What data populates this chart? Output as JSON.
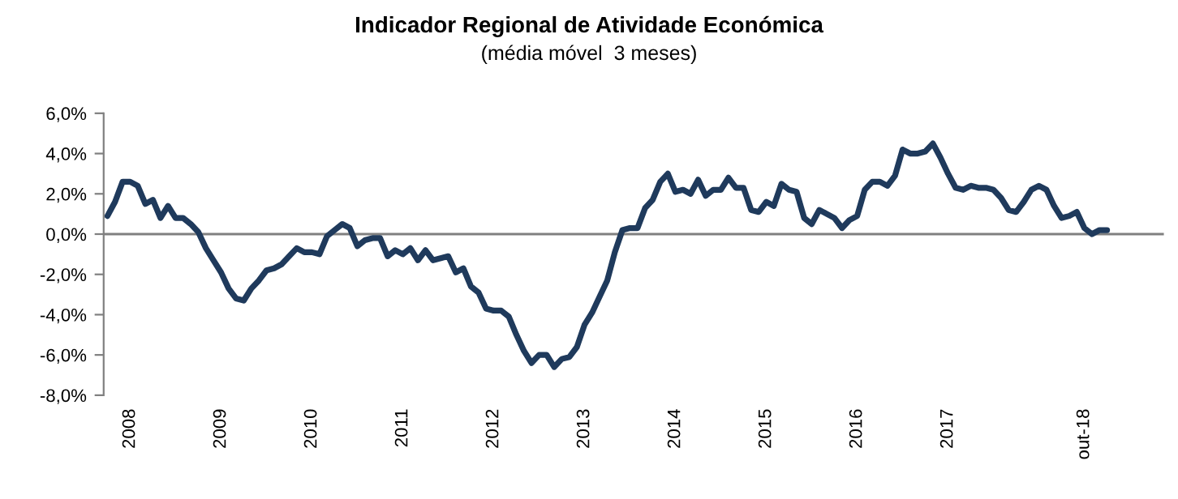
{
  "chart_data": {
    "type": "line",
    "title": "Indicador Regional de Atividade Económica",
    "subtitle": "(média móvel  3 meses)",
    "categories": [
      null,
      null,
      null,
      "2008",
      null,
      null,
      null,
      null,
      null,
      null,
      null,
      null,
      null,
      null,
      null,
      "2009",
      null,
      null,
      null,
      null,
      null,
      null,
      null,
      null,
      null,
      null,
      null,
      "2010",
      null,
      null,
      null,
      null,
      null,
      null,
      null,
      null,
      null,
      null,
      null,
      "2011",
      null,
      null,
      null,
      null,
      null,
      null,
      null,
      null,
      null,
      null,
      null,
      "2012",
      null,
      null,
      null,
      null,
      null,
      null,
      null,
      null,
      null,
      null,
      null,
      "2013",
      null,
      null,
      null,
      null,
      null,
      null,
      null,
      null,
      null,
      null,
      null,
      "2014",
      null,
      null,
      null,
      null,
      null,
      null,
      null,
      null,
      null,
      null,
      null,
      "2015",
      null,
      null,
      null,
      null,
      null,
      null,
      null,
      null,
      null,
      null,
      null,
      "2016",
      null,
      null,
      null,
      null,
      null,
      null,
      null,
      null,
      null,
      null,
      null,
      "2017",
      null,
      null,
      null,
      null,
      null,
      null,
      null,
      null,
      null,
      null,
      null,
      null,
      null,
      null,
      null,
      null,
      null,
      "out-18",
      null,
      null,
      null,
      null,
      null,
      null,
      null,
      null,
      null,
      null
    ],
    "series": [
      {
        "color": "#1f3a5c",
        "values": [
          0.9,
          1.6,
          2.6,
          2.6,
          2.4,
          1.5,
          1.7,
          0.8,
          1.4,
          0.8,
          0.8,
          0.5,
          0.1,
          -0.7,
          -1.3,
          -1.9,
          -2.7,
          -3.2,
          -3.3,
          -2.7,
          -2.3,
          -1.8,
          -1.7,
          -1.5,
          -1.1,
          -0.7,
          -0.9,
          -0.9,
          -1.0,
          -0.1,
          0.2,
          0.5,
          0.3,
          -0.6,
          -0.3,
          -0.2,
          -0.2,
          -1.1,
          -0.8,
          -1.0,
          -0.7,
          -1.3,
          -0.8,
          -1.3,
          -1.2,
          -1.1,
          -1.9,
          -1.7,
          -2.6,
          -2.9,
          -3.7,
          -3.8,
          -3.8,
          -4.1,
          -5.0,
          -5.8,
          -6.4,
          -6.0,
          -6.0,
          -6.6,
          -6.2,
          -6.1,
          -5.6,
          -4.5,
          -3.9,
          -3.1,
          -2.3,
          -0.9,
          0.2,
          0.3,
          0.3,
          1.3,
          1.7,
          2.6,
          3.0,
          2.1,
          2.2,
          2.0,
          2.7,
          1.9,
          2.2,
          2.2,
          2.8,
          2.3,
          2.3,
          1.2,
          1.1,
          1.6,
          1.4,
          2.5,
          2.2,
          2.1,
          0.8,
          0.5,
          1.2,
          1.0,
          0.8,
          0.3,
          0.7,
          0.9,
          2.2,
          2.6,
          2.6,
          2.4,
          2.9,
          4.2,
          4.0,
          4.0,
          4.1,
          4.5,
          3.8,
          3.0,
          2.3,
          2.2,
          2.4,
          2.3,
          2.3,
          2.2,
          1.8,
          1.2,
          1.1,
          1.6,
          2.2,
          2.4,
          2.2,
          1.4,
          0.8,
          0.9,
          1.1,
          0.3,
          0.0,
          0.2,
          0.2,
          null,
          null,
          null,
          null,
          null,
          null,
          null
        ]
      }
    ],
    "ylim": [
      -8,
      6
    ],
    "yticks": [
      {
        "value": -8,
        "label": "-8,0%"
      },
      {
        "value": -6,
        "label": "-6,0%"
      },
      {
        "value": -4,
        "label": "-4,0%"
      },
      {
        "value": -2,
        "label": "-2,0%"
      },
      {
        "value": 0,
        "label": "0,0%"
      },
      {
        "value": 2,
        "label": "2,0%"
      },
      {
        "value": 4,
        "label": "4,0%"
      },
      {
        "value": 6,
        "label": "6,0%"
      }
    ],
    "ref_lines": [
      {
        "axis": "y",
        "value": 0,
        "color": "#808080"
      }
    ],
    "grid": false,
    "legend": false
  }
}
